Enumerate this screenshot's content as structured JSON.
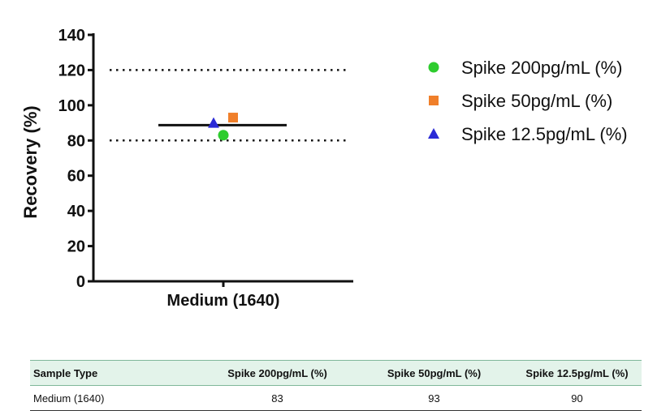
{
  "chart_data": {
    "type": "scatter",
    "ylabel": "Recovery (%)",
    "xlabel": "",
    "categories": [
      "Medium (1640)"
    ],
    "ylim": [
      0,
      140
    ],
    "yticks": [
      0,
      20,
      40,
      60,
      80,
      100,
      120,
      140
    ],
    "reference_lines": [
      80,
      120
    ],
    "mean_line": 88.7,
    "legend_position": "right",
    "grid": false,
    "series": [
      {
        "name": "Spike 200pg/mL (%)",
        "marker": "circle",
        "color": "#2ecc2e",
        "values": [
          83
        ]
      },
      {
        "name": "Spike 50pg/mL (%)",
        "marker": "square",
        "color": "#f07f2a",
        "values": [
          93
        ]
      },
      {
        "name": "Spike 12.5pg/mL (%)",
        "marker": "triangle",
        "color": "#2b2bd6",
        "values": [
          90
        ]
      }
    ]
  },
  "table": {
    "headers": [
      "Sample Type",
      "Spike 200pg/mL (%)",
      "Spike 50pg/mL (%)",
      "Spike 12.5pg/mL (%)"
    ],
    "rows": [
      [
        "Medium (1640)",
        "83",
        "93",
        "90"
      ]
    ]
  }
}
